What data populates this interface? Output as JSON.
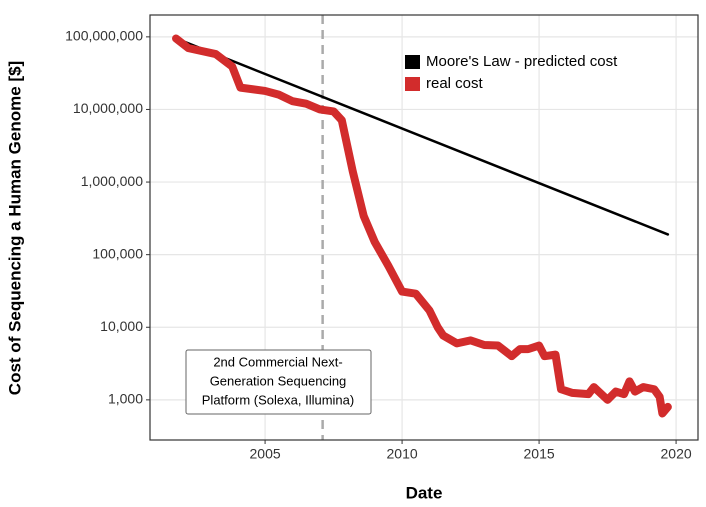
{
  "chart_data": {
    "type": "line",
    "xlabel": "Date",
    "ylabel": "Cost of Sequencing a Human Genome [$]",
    "log_y": true,
    "grid": true,
    "legend_position": "top-right",
    "xlim": [
      2000.8,
      2020.8
    ],
    "xticks": [
      2005,
      2010,
      2015,
      2020
    ],
    "ylim": [
      280,
      200000000
    ],
    "yticks": [
      {
        "value": 1000,
        "label": "1,000"
      },
      {
        "value": 10000,
        "label": "10,000"
      },
      {
        "value": 100000,
        "label": "100,000"
      },
      {
        "value": 1000000,
        "label": "1,000,000"
      },
      {
        "value": 10000000,
        "label": "10,000,000"
      },
      {
        "value": 100000000,
        "label": "100,000,000"
      }
    ],
    "series": [
      {
        "name": "Moore's Law - predicted cost",
        "color": "#000000",
        "width": 2.5,
        "x": [
          2001.75,
          2019.7
        ],
        "values": [
          95000000,
          190000
        ]
      },
      {
        "name": "real cost",
        "color": "#d22c2c",
        "width": 8,
        "x": [
          2001.75,
          2002.2,
          2003.2,
          2003.8,
          2004.1,
          2005.0,
          2005.5,
          2006.0,
          2006.5,
          2007.0,
          2007.5,
          2007.8,
          2008.2,
          2008.6,
          2009.0,
          2009.5,
          2010.0,
          2010.5,
          2011.0,
          2011.3,
          2011.5,
          2012.0,
          2012.5,
          2013.0,
          2013.5,
          2014.0,
          2014.3,
          2014.6,
          2015.0,
          2015.2,
          2015.6,
          2015.8,
          2016.2,
          2016.8,
          2017.0,
          2017.5,
          2017.8,
          2018.1,
          2018.3,
          2018.5,
          2018.8,
          2019.2,
          2019.4,
          2019.5,
          2019.7
        ],
        "values": [
          95000000,
          70000000,
          58000000,
          39000000,
          20000000,
          18000000,
          16000000,
          13000000,
          12000000,
          10000000,
          9400000,
          7100000,
          1400000,
          340000,
          150000,
          70000,
          31000,
          29000,
          17000,
          10000,
          7700,
          6000,
          6600,
          5700,
          5600,
          4000,
          5000,
          5000,
          5600,
          4000,
          4200,
          1400,
          1250,
          1200,
          1500,
          1000,
          1300,
          1200,
          1800,
          1300,
          1500,
          1400,
          1100,
          650,
          800
        ]
      }
    ],
    "annotation": {
      "x": 2007.1,
      "lines": [
        "2nd Commercial Next-",
        "Generation Sequencing",
        "Platform (Solexa, Illumina)"
      ]
    }
  }
}
